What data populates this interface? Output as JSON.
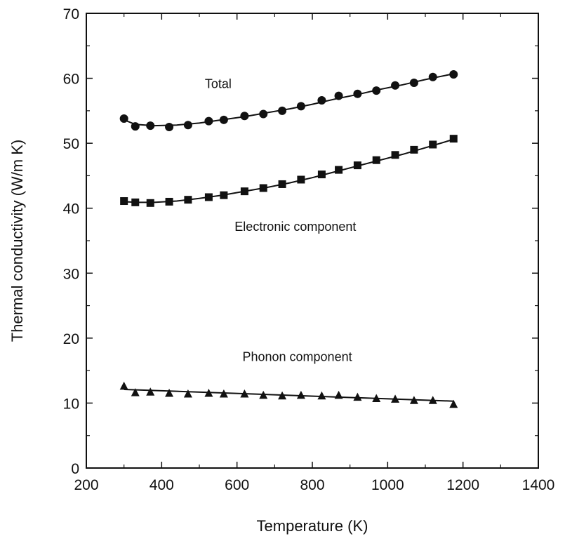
{
  "chart_data": {
    "type": "scatter",
    "title": "",
    "xlabel": "Temperature  (K)",
    "ylabel": "Thermal conductivity  (W/m K)",
    "xlim": [
      200,
      1400
    ],
    "ylim": [
      0,
      70
    ],
    "xticks": [
      200,
      400,
      600,
      800,
      1000,
      1200,
      1400
    ],
    "yticks": [
      0,
      10,
      20,
      30,
      40,
      50,
      60,
      70
    ],
    "grid": false,
    "legend": "none",
    "series": [
      {
        "name": "Total",
        "marker": "circle",
        "x": [
          300,
          330,
          370,
          420,
          470,
          525,
          565,
          620,
          670,
          720,
          770,
          825,
          870,
          920,
          970,
          1020,
          1070,
          1120,
          1175
        ],
        "y": [
          53.8,
          52.6,
          52.7,
          52.5,
          52.8,
          53.4,
          53.6,
          54.2,
          54.5,
          55.0,
          55.7,
          56.6,
          57.3,
          57.6,
          58.1,
          58.9,
          59.3,
          60.2,
          60.6
        ],
        "fit_x": [
          300,
          330,
          380,
          440,
          500,
          560,
          620,
          680,
          740,
          800,
          860,
          920,
          980,
          1040,
          1100,
          1175
        ],
        "fit_y": [
          53.6,
          52.9,
          52.7,
          52.8,
          53.1,
          53.6,
          54.1,
          54.7,
          55.3,
          56.0,
          56.8,
          57.5,
          58.3,
          59.0,
          59.8,
          60.7
        ]
      },
      {
        "name": "Electronic component",
        "marker": "square",
        "x": [
          300,
          330,
          370,
          420,
          470,
          525,
          565,
          620,
          670,
          720,
          770,
          825,
          870,
          920,
          970,
          1020,
          1070,
          1120,
          1175
        ],
        "y": [
          41.1,
          40.9,
          40.8,
          41.0,
          41.3,
          41.7,
          42.0,
          42.6,
          43.1,
          43.7,
          44.4,
          45.2,
          45.9,
          46.6,
          47.4,
          48.2,
          49.0,
          49.8,
          50.7
        ],
        "fit_x": [
          300,
          340,
          380,
          440,
          500,
          560,
          620,
          680,
          740,
          800,
          860,
          920,
          980,
          1040,
          1100,
          1175
        ],
        "fit_y": [
          41.0,
          40.9,
          40.9,
          41.1,
          41.5,
          42.0,
          42.6,
          43.2,
          43.9,
          44.7,
          45.6,
          46.5,
          47.4,
          48.3,
          49.3,
          50.6
        ]
      },
      {
        "name": "Phonon component",
        "marker": "triangle",
        "x": [
          300,
          330,
          370,
          420,
          470,
          525,
          565,
          620,
          670,
          720,
          770,
          825,
          870,
          920,
          970,
          1020,
          1070,
          1120,
          1175
        ],
        "y": [
          12.6,
          11.6,
          11.7,
          11.5,
          11.4,
          11.5,
          11.4,
          11.4,
          11.2,
          11.1,
          11.2,
          11.1,
          11.2,
          10.9,
          10.7,
          10.6,
          10.4,
          10.4,
          9.8
        ],
        "fit_x": [
          300,
          1175
        ],
        "fit_y": [
          12.1,
          10.3
        ]
      }
    ],
    "annotations": [
      {
        "text": "Total",
        "x": 550,
        "y": 58.5
      },
      {
        "text": "Electronic component",
        "x": 755,
        "y": 36.5
      },
      {
        "text": "Phonon component",
        "x": 760,
        "y": 16.5
      }
    ]
  }
}
